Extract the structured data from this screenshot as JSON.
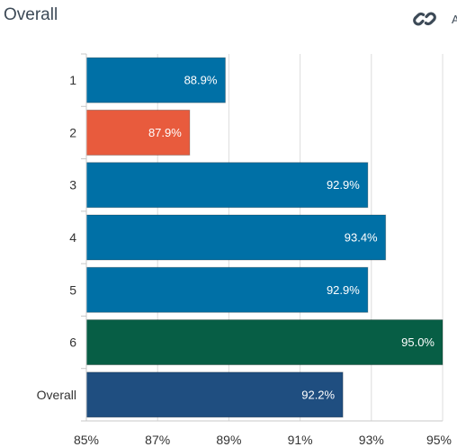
{
  "header": {
    "title": "Overall",
    "link_icon": "link-icon",
    "cut_letter": "A"
  },
  "colors": {
    "default_bar": "#0070a6",
    "highlight_low": "#e85b3d",
    "highlight_high": "#075e45",
    "overall_bar": "#1f4e80",
    "grid": "#dcdcdc",
    "axis_text": "#333333"
  },
  "chart_data": {
    "type": "bar",
    "orientation": "horizontal",
    "categories": [
      "1",
      "2",
      "3",
      "4",
      "5",
      "6",
      "Overall"
    ],
    "values": [
      88.9,
      87.9,
      92.9,
      93.4,
      92.9,
      95.0,
      92.2
    ],
    "data_labels": [
      "88.9%",
      "87.9%",
      "92.9%",
      "93.4%",
      "92.9%",
      "95.0%",
      "92.2%"
    ],
    "bar_colors": [
      "#0070a6",
      "#e85b3d",
      "#0070a6",
      "#0070a6",
      "#0070a6",
      "#075e45",
      "#1f4e80"
    ],
    "xlim": [
      85,
      95
    ],
    "xticks": [
      85,
      87,
      89,
      91,
      93,
      95
    ],
    "xtick_labels": [
      "85%",
      "87%",
      "89%",
      "91%",
      "93%",
      "95%"
    ],
    "grid": true,
    "title": "Overall",
    "xlabel": "",
    "ylabel": ""
  }
}
